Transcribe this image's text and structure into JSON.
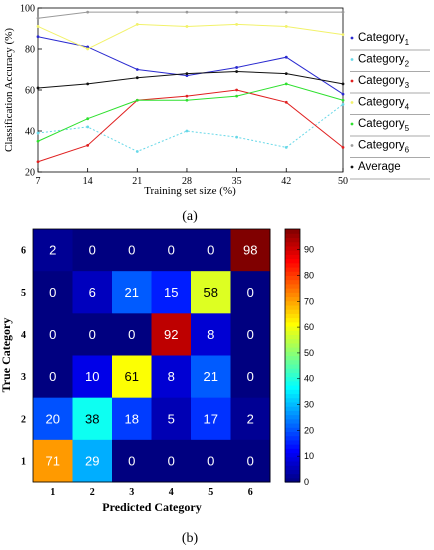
{
  "chart_data": [
    {
      "type": "line",
      "panel_label": "(a)",
      "xlabel": "Training set size (%)",
      "ylabel": "Classification Accuracy (%)",
      "x": [
        7,
        14,
        21,
        28,
        35,
        42,
        50
      ],
      "x_ticks": [
        "7",
        "14",
        "21",
        "28",
        "35",
        "42",
        "50"
      ],
      "ylim": [
        20,
        100
      ],
      "y_ticks": [
        "20",
        "40",
        "60",
        "80",
        "100"
      ],
      "legend_position": "right",
      "series": [
        {
          "name": "Category",
          "sub": "1",
          "color": "#2a2ad0",
          "dash": false,
          "values": [
            86,
            81,
            70,
            67,
            71,
            76,
            58
          ]
        },
        {
          "name": "Category",
          "sub": "2",
          "color": "#66d8e8",
          "dash": true,
          "values": [
            39,
            42,
            30,
            40,
            37,
            32,
            53
          ]
        },
        {
          "name": "Category",
          "sub": "3",
          "color": "#e02020",
          "dash": false,
          "values": [
            25,
            33,
            55,
            57,
            60,
            54,
            32
          ]
        },
        {
          "name": "Category",
          "sub": "4",
          "color": "#f2f26a",
          "dash": false,
          "values": [
            91,
            80,
            92,
            91,
            92,
            91,
            87
          ]
        },
        {
          "name": "Category",
          "sub": "5",
          "color": "#2ee02e",
          "dash": false,
          "values": [
            35,
            46,
            55,
            55,
            57,
            63,
            55
          ]
        },
        {
          "name": "Category",
          "sub": "6",
          "color": "#9a9a9a",
          "dash": false,
          "values": [
            95,
            98,
            98,
            98,
            98,
            98,
            98
          ]
        },
        {
          "name": "Average",
          "sub": "",
          "color": "#111111",
          "dash": false,
          "values": [
            61,
            63,
            66,
            68,
            69,
            68,
            63
          ]
        }
      ]
    },
    {
      "type": "heatmap",
      "panel_label": "(b)",
      "xlabel": "Predicted Category",
      "ylabel": "True Category",
      "x_categories": [
        "1",
        "2",
        "3",
        "4",
        "5",
        "6"
      ],
      "y_categories": [
        "6",
        "5",
        "4",
        "3",
        "2",
        "1"
      ],
      "matrix": [
        [
          2,
          0,
          0,
          0,
          0,
          98
        ],
        [
          0,
          6,
          21,
          15,
          58,
          0
        ],
        [
          0,
          0,
          0,
          92,
          8,
          0
        ],
        [
          0,
          10,
          61,
          8,
          21,
          0
        ],
        [
          20,
          38,
          18,
          5,
          17,
          2
        ],
        [
          71,
          29,
          0,
          0,
          0,
          0
        ]
      ],
      "colorbar_ticks": [
        "0",
        "10",
        "20",
        "30",
        "40",
        "50",
        "60",
        "70",
        "80",
        "90"
      ],
      "colorbar_range": [
        0,
        98
      ]
    }
  ]
}
